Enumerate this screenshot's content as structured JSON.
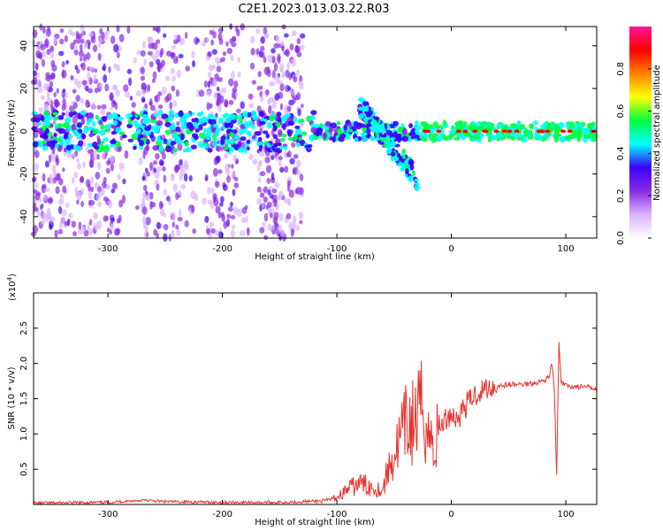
{
  "title": "C2E1.2023.013.03.22.R03",
  "colors": {
    "line": "#e8332e",
    "frame": "#000000",
    "background": "#ffffff"
  },
  "chart_data": [
    {
      "type": "heatmap",
      "xlabel": "Height of straight line (km)",
      "ylabel": "Frequency (Hz)",
      "xlim": [
        -365,
        127
      ],
      "ylim": [
        -50,
        49
      ],
      "x_ticks": [
        "-300",
        "-200",
        "-100",
        "0",
        "100"
      ],
      "y_ticks": [
        "-40",
        "-20",
        "0",
        "20",
        "40"
      ],
      "colorbar": {
        "label": "Normalized spectral amplitude",
        "range": [
          0.0,
          1.0
        ],
        "ticks": [
          "0.0",
          "0.2",
          "0.4",
          "0.6",
          "0.8"
        ],
        "colormap": [
          "#ffffff",
          "#d9b3ff",
          "#8a2be2",
          "#3a00ff",
          "#00ffff",
          "#00ff40",
          "#ffff00",
          "#ff8000",
          "#ff0000",
          "#ff1493"
        ]
      },
      "features": {
        "broadband_noise_x": [
          -365,
          -130
        ],
        "signal_center_hz": 0,
        "signal_band_hz": [
          -3,
          3
        ],
        "strong_tone_x": [
          -25,
          127
        ],
        "drift_segment_x": [
          -80,
          -30
        ],
        "drift_segment_hz": [
          12,
          -22
        ]
      }
    },
    {
      "type": "line",
      "xlabel": "Height of straight line (km)",
      "ylabel": "SNR (10 * v/v)",
      "scale_label": "(x10",
      "scale_exp": "4",
      "scale_close": ")",
      "xlim": [
        -365,
        127
      ],
      "ylim": [
        0,
        3.0
      ],
      "x_ticks": [
        "-300",
        "-200",
        "-100",
        "0",
        "100"
      ],
      "y_ticks": [
        "0.5",
        "1.0",
        "1.5",
        "2.0",
        "2.5"
      ],
      "series": [
        {
          "color": "#e8332e",
          "x": [
            -365,
            -300,
            -270,
            -250,
            -200,
            -150,
            -110,
            -100,
            -90,
            -80,
            -70,
            -60,
            -55,
            -50,
            -45,
            -40,
            -35,
            -30,
            -25,
            -20,
            -15,
            -10,
            -5,
            0,
            5,
            10,
            15,
            20,
            25,
            30,
            40,
            50,
            60,
            70,
            80,
            85,
            88,
            90,
            92,
            94,
            96,
            98,
            100,
            110,
            120,
            127
          ],
          "y": [
            0.02,
            0.03,
            0.06,
            0.04,
            0.03,
            0.03,
            0.05,
            0.1,
            0.22,
            0.3,
            0.25,
            0.2,
            0.5,
            0.7,
            0.9,
            1.1,
            1.15,
            1.2,
            1.4,
            1.0,
            0.8,
            1.1,
            1.2,
            1.3,
            1.2,
            1.35,
            1.45,
            1.55,
            1.6,
            1.65,
            1.68,
            1.7,
            1.7,
            1.72,
            1.75,
            1.8,
            2.0,
            1.6,
            0.4,
            2.3,
            1.7,
            1.72,
            1.68,
            1.67,
            1.66,
            1.65
          ]
        }
      ]
    }
  ]
}
